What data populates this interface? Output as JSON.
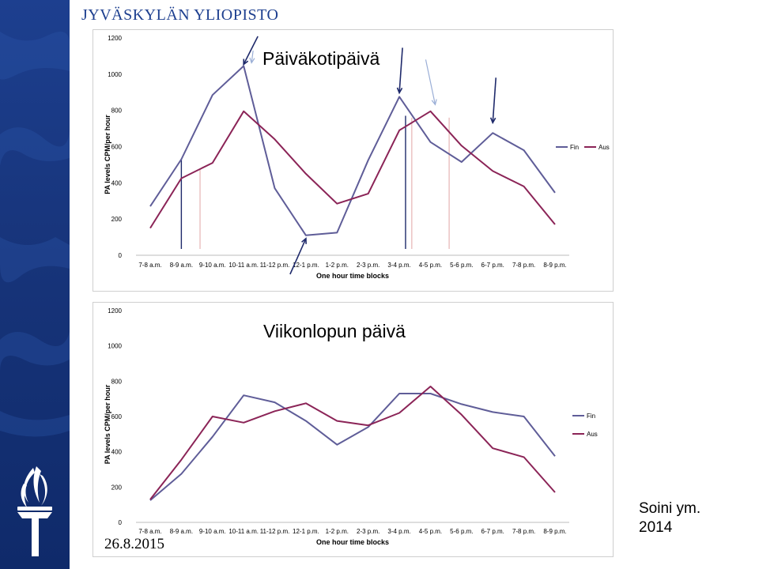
{
  "header": {
    "title": "JYVÄSKYLÄN YLIOPISTO"
  },
  "footer": {
    "date": "26.8.2015"
  },
  "citation": {
    "line1": "Soini ym.",
    "line2": "2014"
  },
  "sidebar": {
    "logo_icon": "university-torch-logo-icon"
  },
  "colors": {
    "fin": "#5f5d98",
    "aus": "#8b2457",
    "sidebar": "#1d3f8f",
    "arrow": "#1f2a6b",
    "arrow_light": "#9aaed6",
    "marker_red": "#e6b4b4"
  },
  "chart_data": [
    {
      "type": "line",
      "title": "Päiväkotipäivä",
      "xlabel": "One hour time blocks",
      "ylabel": "PA levels CPM/per hour",
      "ylim": [
        0,
        1200
      ],
      "yticks": [
        0,
        200,
        400,
        600,
        800,
        1000,
        1200
      ],
      "grid": false,
      "legend_position": "right",
      "categories": [
        "7-8 a.m.",
        "8-9 a.m.",
        "9-10 a.m.",
        "10-11 a.m.",
        "11-12 p.m.",
        "12-1 p.m.",
        "1-2 p.m.",
        "2-3 p.m.",
        "3-4 p.m.",
        "4-5 p.m.",
        "5-6 p.m.",
        "6-7 p.m.",
        "7-8 p.m.",
        "8-9 p.m."
      ],
      "series": [
        {
          "name": "Fin",
          "values": [
            270,
            530,
            885,
            1045,
            370,
            110,
            125,
            525,
            875,
            625,
            515,
            675,
            580,
            345
          ]
        },
        {
          "name": "Aus",
          "values": [
            150,
            425,
            510,
            795,
            640,
            450,
            285,
            340,
            690,
            795,
            605,
            465,
            380,
            170
          ]
        }
      ],
      "annotations": [
        {
          "type": "arrow",
          "style": "dark",
          "category_index": 3,
          "value": 1045,
          "direction": "down"
        },
        {
          "type": "arrow",
          "style": "light",
          "category_index": 3,
          "value": 1045,
          "direction": "down"
        },
        {
          "type": "arrow",
          "style": "dark",
          "category_index": 8,
          "value": 875,
          "direction": "down"
        },
        {
          "type": "arrow",
          "style": "light",
          "category_index": 9,
          "value": 810,
          "direction": "down"
        },
        {
          "type": "arrow",
          "style": "dark",
          "category_index": 11,
          "value": 710,
          "direction": "down"
        },
        {
          "type": "arrow",
          "style": "dark",
          "category_index": 5,
          "value": 110,
          "direction": "up"
        },
        {
          "type": "marker",
          "style": "dark",
          "category_index": 1,
          "value": 530
        },
        {
          "type": "marker",
          "style": "light",
          "category_index": 1.6,
          "value": 480
        },
        {
          "type": "marker",
          "style": "dark",
          "category_index": 8.2,
          "value": 770
        },
        {
          "type": "marker",
          "style": "light",
          "category_index": 8.4,
          "value": 760
        },
        {
          "type": "marker",
          "style": "light",
          "category_index": 9.6,
          "value": 760
        }
      ]
    },
    {
      "type": "line",
      "title": "Viikonlopun päivä",
      "xlabel": "One hour time blocks",
      "ylabel": "PA levels CPM/per hour",
      "ylim": [
        0,
        1200
      ],
      "yticks": [
        0,
        200,
        400,
        600,
        800,
        1000,
        1200
      ],
      "grid": false,
      "legend_position": "right",
      "categories": [
        "7-8 a.m.",
        "8-9 a.m.",
        "9-10 a.m.",
        "10-11 a.m.",
        "11-12 p.m.",
        "12-1 p.m.",
        "1-2 p.m.",
        "2-3 p.m.",
        "3-4 p.m.",
        "4-5 p.m.",
        "5-6 p.m.",
        "6-7 p.m.",
        "7-8 p.m.",
        "8-9 p.m."
      ],
      "series": [
        {
          "name": "Fin",
          "values": [
            125,
            275,
            485,
            720,
            680,
            575,
            440,
            540,
            730,
            730,
            670,
            625,
            600,
            375
          ]
        },
        {
          "name": "Aus",
          "values": [
            130,
            355,
            600,
            565,
            630,
            675,
            575,
            550,
            620,
            770,
            610,
            420,
            370,
            170
          ]
        }
      ]
    }
  ]
}
